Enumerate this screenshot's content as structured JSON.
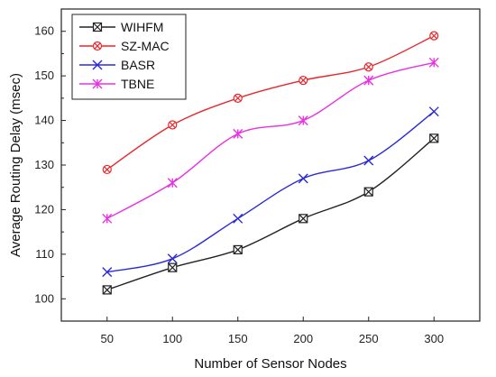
{
  "chart_data": {
    "type": "line",
    "title": "",
    "xlabel": "Number of Sensor Nodes",
    "ylabel": "Average Routing Delay (msec)",
    "x": [
      50,
      100,
      150,
      200,
      250,
      300
    ],
    "xlim": [
      15,
      335
    ],
    "ylim": [
      95,
      165
    ],
    "xticks": [
      50,
      100,
      150,
      200,
      250,
      300
    ],
    "yticks": [
      100,
      110,
      120,
      130,
      140,
      150,
      160
    ],
    "grid": false,
    "legend_position": "top-left",
    "series": [
      {
        "name": "WIHFM",
        "color": "#222222",
        "marker": "square-x",
        "values": [
          102,
          107,
          111,
          118,
          124,
          136
        ]
      },
      {
        "name": "SZ-MAC",
        "color": "#e8262b",
        "marker": "circle-x",
        "values": [
          129,
          139,
          145,
          149,
          152,
          159
        ]
      },
      {
        "name": "BASR",
        "color": "#2b2bd6",
        "marker": "x",
        "values": [
          106,
          109,
          118,
          127,
          131,
          142
        ]
      },
      {
        "name": "TBNE",
        "color": "#e832e0",
        "marker": "star",
        "values": [
          118,
          126,
          137,
          140,
          149,
          153
        ]
      }
    ]
  }
}
